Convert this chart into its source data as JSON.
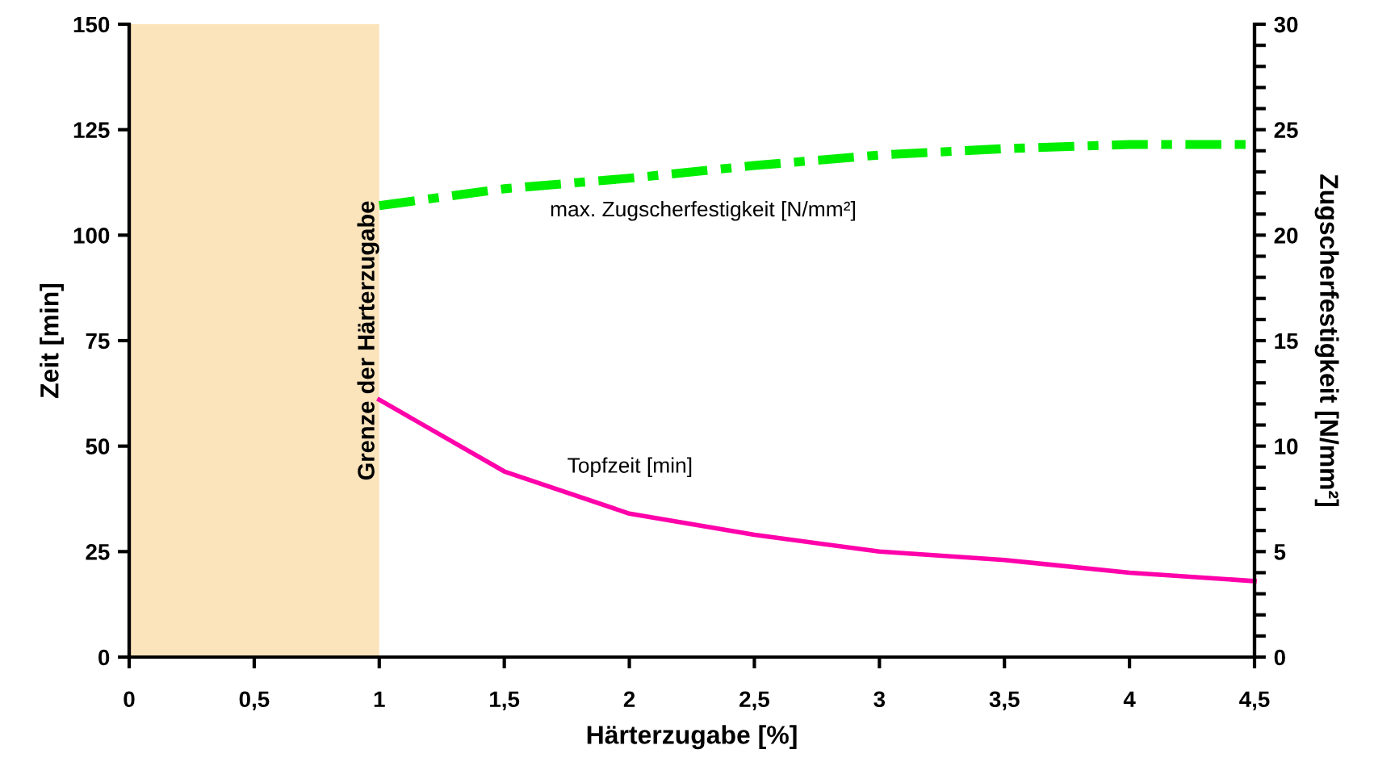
{
  "chart_data": {
    "type": "line",
    "xlabel": "Härterzugabe [%]",
    "ylabel": "Zeit [min]",
    "y2label": "Zugscherfestigkeit [N/mm²]",
    "x": [
      1,
      1.5,
      2,
      2.5,
      3,
      3.5,
      4,
      4.5
    ],
    "series": [
      {
        "color": "#ff00aa",
        "values": [
          61,
          44,
          34,
          29,
          25,
          23,
          20,
          18
        ],
        "line_style": "solid"
      },
      {
        "color": "#00ee00",
        "values": [
          21.4,
          22.2,
          22.7,
          23.3,
          23.8,
          24.1,
          24.3,
          24.3
        ],
        "axis": "y2",
        "line_style": "dashed"
      }
    ],
    "xlim": [
      0,
      4.5
    ],
    "xticks": [
      0,
      {
        "value": 0.5,
        "label": "0,5"
      },
      1,
      {
        "value": 1.5,
        "label": "1,5"
      },
      2,
      {
        "value": 2.5,
        "label": "2,5"
      },
      3,
      {
        "value": 3.5,
        "label": "3,5"
      },
      4,
      {
        "value": 4.5,
        "label": "4,5"
      }
    ],
    "ylim": [
      0,
      150
    ],
    "yticks": [
      0,
      25,
      50,
      75,
      100,
      125,
      150
    ],
    "y2lim": [
      0,
      30
    ],
    "y2ticks": [
      0,
      {
        "value": 1,
        "label": null
      },
      {
        "value": 2,
        "label": null
      },
      {
        "value": 3,
        "label": null
      },
      {
        "value": 4,
        "label": null
      },
      5,
      {
        "value": 6,
        "label": null
      },
      {
        "value": 7,
        "label": null
      },
      {
        "value": 8,
        "label": null
      },
      {
        "value": 9,
        "label": null
      },
      10,
      {
        "value": 11,
        "label": null
      },
      {
        "value": 12,
        "label": null
      },
      {
        "value": 13,
        "label": null
      },
      {
        "value": 14,
        "label": null
      },
      15,
      {
        "value": 16,
        "label": null
      },
      {
        "value": 17,
        "label": null
      },
      {
        "value": 18,
        "label": null
      },
      {
        "value": 19,
        "label": null
      },
      20,
      {
        "value": 21,
        "label": null
      },
      {
        "value": 22,
        "label": null
      },
      {
        "value": 23,
        "label": null
      },
      {
        "value": 24,
        "label": null
      },
      25,
      {
        "value": 26,
        "label": null
      },
      {
        "value": 27,
        "label": null
      },
      {
        "value": 28,
        "label": null
      },
      {
        "value": 29,
        "label": null
      },
      30
    ],
    "bands": [
      {
        "axis": "x",
        "from": 0,
        "to": 1,
        "label": "Grenze der Härterzugabe",
        "color": "#fbe3bb"
      }
    ],
    "annotations": [
      "max. Zugscherfestigkeit [N/mm²]",
      "Topfzeit [min]"
    ],
    "grid": false,
    "legend": false,
    "marker": "none"
  }
}
